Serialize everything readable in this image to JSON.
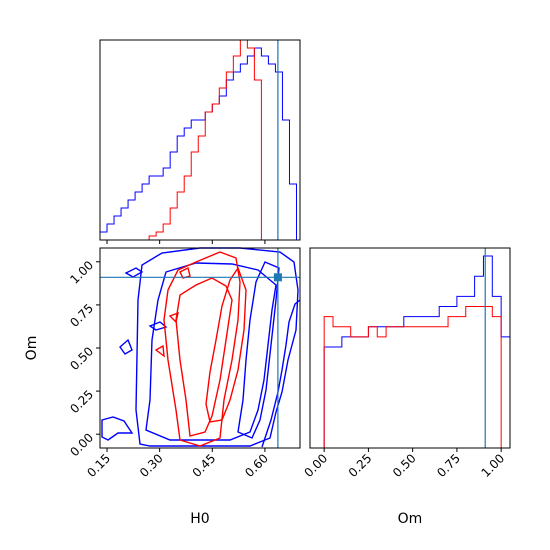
{
  "chart_data": [
    {
      "panel": "H0 marginal",
      "type": "histogram-step",
      "xlim": [
        0.13,
        0.7
      ],
      "series": [
        {
          "color": "#0000ff",
          "x_edges": [
            0.13,
            0.15,
            0.17,
            0.19,
            0.21,
            0.23,
            0.25,
            0.27,
            0.29,
            0.31,
            0.33,
            0.35,
            0.37,
            0.39,
            0.41,
            0.43,
            0.45,
            0.47,
            0.49,
            0.51,
            0.53,
            0.55,
            0.57,
            0.59,
            0.61,
            0.63,
            0.65,
            0.67,
            0.69
          ],
          "values": [
            1,
            2,
            3,
            4,
            5,
            6,
            7,
            8,
            8,
            9,
            11,
            13,
            14,
            15,
            15,
            16,
            17,
            18,
            20,
            21,
            22,
            23,
            24,
            23,
            22,
            21,
            15,
            7
          ]
        },
        {
          "color": "#ff0000",
          "x_edges": [
            0.27,
            0.29,
            0.31,
            0.33,
            0.35,
            0.37,
            0.39,
            0.41,
            0.43,
            0.45,
            0.47,
            0.49,
            0.51,
            0.53,
            0.55,
            0.57,
            0.59
          ],
          "values": [
            0.5,
            1,
            2,
            4,
            6,
            8,
            11,
            13,
            16,
            17,
            19,
            21,
            23,
            25,
            24,
            20
          ]
        }
      ],
      "truth_x": 0.637
    },
    {
      "panel": "Om marginal",
      "type": "histogram-step",
      "xlim": [
        -0.08,
        1.05
      ],
      "xlabel": "Om",
      "xticks": [
        "0.00",
        "0.25",
        "0.50",
        "0.75",
        "1.00"
      ],
      "series": [
        {
          "color": "#0000ff",
          "x_edges": [
            -0.05,
            0.0,
            0.05,
            0.1,
            0.15,
            0.2,
            0.25,
            0.3,
            0.35,
            0.4,
            0.45,
            0.5,
            0.55,
            0.6,
            0.65,
            0.7,
            0.75,
            0.8,
            0.85,
            0.9,
            0.95,
            1.0,
            1.05
          ],
          "values": [
            0,
            10,
            10,
            11,
            11,
            11,
            12,
            12,
            12,
            12,
            13,
            13,
            13,
            13,
            14,
            14,
            15,
            15,
            17,
            19,
            15,
            11
          ]
        },
        {
          "color": "#ff0000",
          "x_edges": [
            0.0,
            0.05,
            0.1,
            0.15,
            0.2,
            0.25,
            0.3,
            0.35,
            0.4,
            0.45,
            0.5,
            0.55,
            0.6,
            0.65,
            0.7,
            0.75,
            0.8,
            0.85,
            0.9,
            0.95,
            1.0
          ],
          "values": [
            13,
            12,
            12,
            11,
            11,
            12,
            11,
            12,
            12,
            12,
            12,
            12,
            12,
            12,
            13,
            13,
            14,
            14,
            14,
            13
          ]
        }
      ],
      "truth_x": 0.91
    },
    {
      "panel": "H0 vs Om 2D",
      "type": "contour",
      "xlim": [
        0.13,
        0.7
      ],
      "ylim": [
        -0.08,
        1.08
      ],
      "xlabel": "H0",
      "ylabel": "Om",
      "xticks": [
        "0.15",
        "0.30",
        "0.45",
        "0.60"
      ],
      "yticks": [
        "0.00",
        "0.25",
        "0.50",
        "0.75",
        "1.00"
      ],
      "truth_point": [
        0.637,
        0.91
      ],
      "contour_colors": [
        "#0000ff",
        "#ff0000"
      ]
    }
  ]
}
